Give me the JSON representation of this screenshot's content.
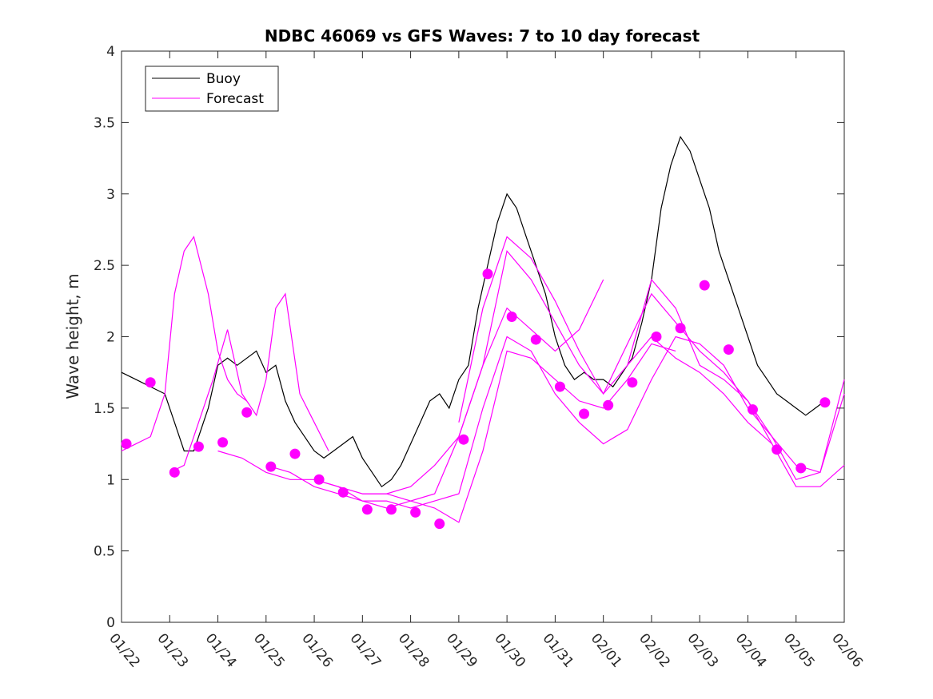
{
  "chart_data": {
    "type": "line",
    "title": "NDBC 46069 vs GFS Waves: 7 to 10 day forecast",
    "xlabel": "",
    "ylabel": "Wave height, m",
    "ylim": [
      0,
      4
    ],
    "xlim": [
      0,
      15
    ],
    "grid": false,
    "legend_position": "top-left",
    "x_ticks": [
      {
        "value": 0,
        "label": "01/22"
      },
      {
        "value": 1,
        "label": "01/23"
      },
      {
        "value": 2,
        "label": "01/24"
      },
      {
        "value": 3,
        "label": "01/25"
      },
      {
        "value": 4,
        "label": "01/26"
      },
      {
        "value": 5,
        "label": "01/27"
      },
      {
        "value": 6,
        "label": "01/28"
      },
      {
        "value": 7,
        "label": "01/29"
      },
      {
        "value": 8,
        "label": "01/30"
      },
      {
        "value": 9,
        "label": "01/31"
      },
      {
        "value": 10,
        "label": "02/01"
      },
      {
        "value": 11,
        "label": "02/02"
      },
      {
        "value": 12,
        "label": "02/03"
      },
      {
        "value": 13,
        "label": "02/04"
      },
      {
        "value": 14,
        "label": "02/05"
      },
      {
        "value": 15,
        "label": "02/06"
      }
    ],
    "y_ticks": [
      {
        "value": 0,
        "label": "0"
      },
      {
        "value": 0.5,
        "label": "0.5"
      },
      {
        "value": 1,
        "label": "1"
      },
      {
        "value": 1.5,
        "label": "1.5"
      },
      {
        "value": 2,
        "label": "2"
      },
      {
        "value": 2.5,
        "label": "2.5"
      },
      {
        "value": 3,
        "label": "3"
      },
      {
        "value": 3.5,
        "label": "3.5"
      },
      {
        "value": 4,
        "label": "4"
      }
    ],
    "legend": [
      {
        "name": "Buoy",
        "color": "#000000"
      },
      {
        "name": "Forecast",
        "color": "#ff00ff"
      }
    ],
    "series": [
      {
        "name": "Buoy",
        "color": "#000000",
        "x": [
          0,
          0.3,
          0.6,
          0.9,
          1.1,
          1.3,
          1.5,
          1.8,
          2.0,
          2.2,
          2.4,
          2.6,
          2.8,
          3.0,
          3.2,
          3.4,
          3.6,
          3.8,
          4.0,
          4.2,
          4.4,
          4.6,
          4.8,
          5.0,
          5.2,
          5.4,
          5.6,
          5.8,
          6.0,
          6.2,
          6.4,
          6.6,
          6.8,
          7.0,
          7.2,
          7.4,
          7.6,
          7.8,
          8.0,
          8.2,
          8.4,
          8.6,
          8.8,
          9.0,
          9.2,
          9.4,
          9.6,
          9.8,
          10.0,
          10.2,
          10.4,
          10.6,
          10.8,
          11.0,
          11.2,
          11.4,
          11.6,
          11.8,
          12.0,
          12.2,
          12.4,
          12.6,
          12.8,
          13.0,
          13.2,
          13.4,
          13.6,
          13.8,
          14.0,
          14.2,
          14.4,
          14.6
        ],
        "y": [
          1.75,
          1.7,
          1.65,
          1.6,
          1.4,
          1.2,
          1.2,
          1.5,
          1.8,
          1.85,
          1.8,
          1.85,
          1.9,
          1.75,
          1.8,
          1.55,
          1.4,
          1.3,
          1.2,
          1.15,
          1.2,
          1.25,
          1.3,
          1.15,
          1.05,
          0.95,
          1.0,
          1.1,
          1.25,
          1.4,
          1.55,
          1.6,
          1.5,
          1.7,
          1.8,
          2.2,
          2.5,
          2.8,
          3.0,
          2.9,
          2.7,
          2.5,
          2.3,
          2.0,
          1.8,
          1.7,
          1.75,
          1.7,
          1.7,
          1.65,
          1.75,
          1.85,
          2.1,
          2.4,
          2.9,
          3.2,
          3.4,
          3.3,
          3.1,
          2.9,
          2.6,
          2.4,
          2.2,
          2.0,
          1.8,
          1.7,
          1.6,
          1.55,
          1.5,
          1.45,
          1.5,
          1.55
        ]
      },
      {
        "name": "Forecast 1",
        "color": "#ff00ff",
        "x": [
          0,
          0.3,
          0.6,
          0.9,
          1.1,
          1.3,
          1.5,
          1.8,
          2.0,
          2.2,
          2.4,
          2.6
        ],
        "y": [
          1.2,
          1.25,
          1.3,
          1.6,
          2.3,
          2.6,
          2.7,
          2.3,
          1.9,
          1.7,
          1.6,
          1.55
        ]
      },
      {
        "name": "Forecast 2",
        "color": "#ff00ff",
        "x": [
          1.0,
          1.3,
          1.6,
          1.9,
          2.2,
          2.5,
          2.8,
          3.0,
          3.2,
          3.4,
          3.7,
          4.0,
          4.3
        ],
        "y": [
          1.05,
          1.1,
          1.4,
          1.7,
          2.05,
          1.6,
          1.45,
          1.7,
          2.2,
          2.3,
          1.6,
          1.4,
          1.2
        ]
      },
      {
        "name": "Forecast 3",
        "color": "#ff00ff",
        "x": [
          2.0,
          2.5,
          3.0,
          3.5,
          4.0,
          4.5,
          5.0,
          5.5,
          6.0,
          6.5,
          7.0,
          7.5,
          8.0,
          8.5,
          9.0,
          9.5,
          10.0
        ],
        "y": [
          1.2,
          1.15,
          1.05,
          1.0,
          1.0,
          0.95,
          0.9,
          0.9,
          0.85,
          0.9,
          1.3,
          1.8,
          2.2,
          2.05,
          1.9,
          2.05,
          2.4
        ]
      },
      {
        "name": "Forecast 4",
        "color": "#ff00ff",
        "x": [
          3.0,
          3.5,
          4.0,
          4.5,
          5.0,
          5.5,
          6.0,
          6.5,
          7.0,
          7.5,
          8.0,
          8.5,
          9.0,
          9.5,
          10.0,
          10.5,
          11.0,
          11.5
        ],
        "y": [
          1.1,
          1.05,
          0.95,
          0.9,
          0.85,
          0.8,
          0.85,
          0.8,
          0.7,
          1.2,
          1.9,
          1.85,
          1.7,
          1.55,
          1.5,
          1.7,
          1.95,
          1.9
        ]
      },
      {
        "name": "Forecast 5",
        "color": "#ff00ff",
        "x": [
          4.0,
          4.5,
          5.0,
          5.5,
          6.0,
          6.5,
          7.0,
          7.5,
          8.0,
          8.5,
          9.0,
          9.5,
          10.0,
          10.5,
          11.0,
          11.5,
          12.0,
          12.5,
          13.0,
          13.5,
          14.0,
          14.5,
          15.0
        ],
        "y": [
          1.0,
          0.95,
          0.85,
          0.85,
          0.8,
          0.85,
          0.9,
          1.5,
          2.0,
          1.9,
          1.6,
          1.4,
          1.25,
          1.35,
          1.7,
          2.0,
          1.95,
          1.8,
          1.5,
          1.3,
          1.1,
          1.05,
          1.7
        ]
      },
      {
        "name": "Forecast 6",
        "color": "#ff00ff",
        "x": [
          5.0,
          5.5,
          6.0,
          6.5,
          7.0,
          7.5,
          8.0,
          8.5,
          9.0,
          9.5,
          10.0,
          10.5,
          11.0,
          11.5,
          12.0,
          12.5,
          13.0,
          13.5
        ],
        "y": [
          0.9,
          0.9,
          0.95,
          1.1,
          1.3,
          1.8,
          2.6,
          2.4,
          2.1,
          1.8,
          1.6,
          1.8,
          2.0,
          1.85,
          1.75,
          1.6,
          1.4,
          1.25
        ]
      },
      {
        "name": "Forecast 7",
        "color": "#ff00ff",
        "x": [
          7.0,
          7.5,
          8.0,
          8.5,
          9.0,
          9.5,
          10.0,
          10.5,
          11.0,
          11.5,
          12.0,
          12.5,
          13.0,
          13.5,
          14.0,
          14.5,
          15.0
        ],
        "y": [
          1.4,
          2.2,
          2.7,
          2.55,
          2.25,
          1.9,
          1.6,
          1.95,
          2.3,
          2.1,
          1.9,
          1.75,
          1.55,
          1.3,
          1.0,
          1.05,
          1.6
        ]
      },
      {
        "name": "Forecast 8",
        "color": "#ff00ff",
        "x": [
          10.5,
          11.0,
          11.5,
          12.0,
          12.5,
          13.0,
          13.5,
          14.0,
          14.5,
          15.0
        ],
        "y": [
          1.8,
          2.4,
          2.2,
          1.8,
          1.7,
          1.55,
          1.25,
          0.95,
          0.95,
          1.1
        ]
      }
    ],
    "forecast_markers": {
      "color": "#ff00ff",
      "x": [
        0.1,
        0.6,
        1.1,
        1.6,
        2.1,
        2.6,
        3.1,
        3.6,
        4.1,
        4.6,
        5.1,
        5.6,
        6.1,
        6.6,
        7.1,
        7.6,
        8.1,
        8.6,
        9.1,
        9.6,
        10.1,
        10.6,
        11.1,
        11.6,
        12.1,
        12.6,
        13.1,
        13.6,
        14.1,
        14.6
      ],
      "y": [
        1.25,
        1.68,
        1.05,
        1.23,
        1.26,
        1.47,
        1.09,
        1.18,
        1.0,
        0.91,
        0.79,
        0.79,
        0.77,
        0.69,
        1.28,
        2.44,
        2.14,
        1.98,
        1.65,
        1.46,
        1.52,
        1.68,
        2.0,
        2.06,
        2.36,
        1.91,
        1.49,
        1.21,
        1.08,
        1.54
      ]
    }
  }
}
